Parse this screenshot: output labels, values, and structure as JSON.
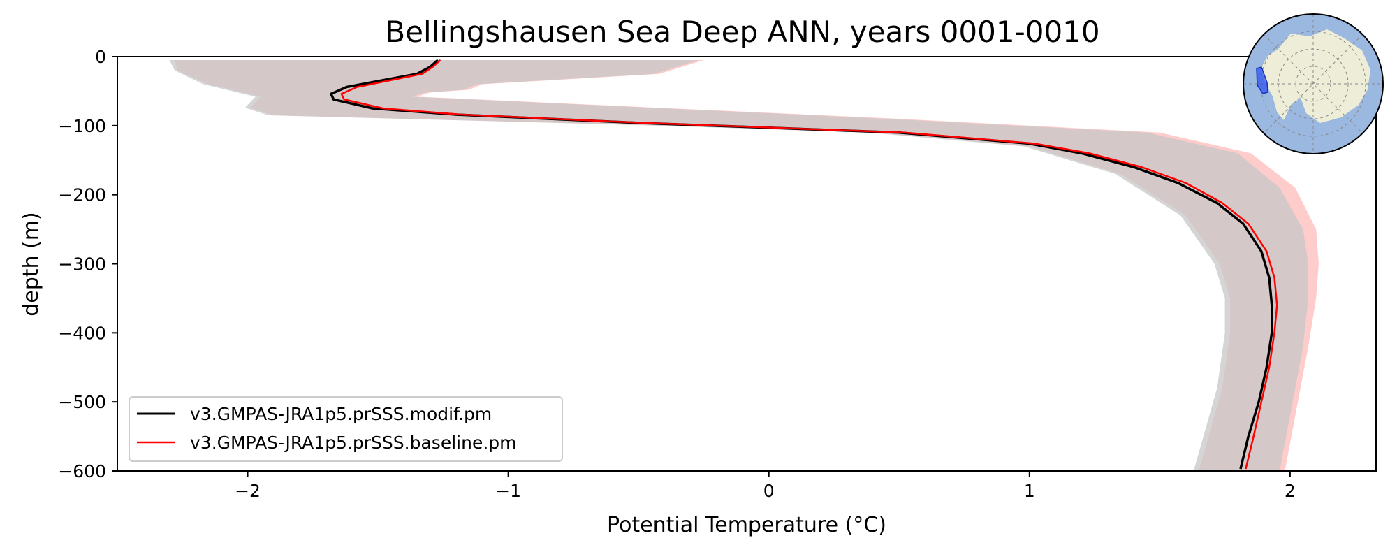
{
  "chart_data": {
    "type": "line",
    "title": "Bellingshausen Sea Deep ANN, years 0001-0010",
    "xlabel": "Potential Temperature (°C)",
    "ylabel": "depth (m)",
    "xlim": [
      -2.5,
      2.33
    ],
    "ylim": [
      -600,
      0
    ],
    "xticks": [
      -2,
      -1,
      0,
      1,
      2
    ],
    "xtick_labels": [
      "−2",
      "−1",
      "0",
      "1",
      "2"
    ],
    "yticks": [
      0,
      -100,
      -200,
      -300,
      -400,
      -500,
      -600
    ],
    "ytick_labels": [
      "0",
      "−100",
      "−200",
      "−300",
      "−400",
      "−500",
      "−600"
    ],
    "grid": false,
    "legend_position": "lower-left",
    "series": [
      {
        "name": "v3.GMPAS-JRA1p5.prSSS.modif.pm",
        "color": "#000000",
        "points": [
          [
            -1.27,
            -5
          ],
          [
            -1.3,
            -15
          ],
          [
            -1.35,
            -25
          ],
          [
            -1.62,
            -44
          ],
          [
            -1.68,
            -54
          ],
          [
            -1.67,
            -62
          ],
          [
            -1.52,
            -75
          ],
          [
            -1.2,
            -84
          ],
          [
            -0.5,
            -96
          ],
          [
            0.0,
            -103
          ],
          [
            0.5,
            -110
          ],
          [
            0.75,
            -118
          ],
          [
            1.0,
            -126
          ],
          [
            1.2,
            -140
          ],
          [
            1.4,
            -160
          ],
          [
            1.57,
            -183
          ],
          [
            1.72,
            -212
          ],
          [
            1.82,
            -242
          ],
          [
            1.89,
            -282
          ],
          [
            1.92,
            -320
          ],
          [
            1.93,
            -360
          ],
          [
            1.93,
            -400
          ],
          [
            1.91,
            -450
          ],
          [
            1.88,
            -500
          ],
          [
            1.84,
            -550
          ],
          [
            1.81,
            -597
          ]
        ]
      },
      {
        "name": "v3.GMPAS-JRA1p5.prSSS.baseline.pm",
        "color": "#ff0000",
        "points": [
          [
            -1.26,
            -5
          ],
          [
            -1.29,
            -15
          ],
          [
            -1.33,
            -25
          ],
          [
            -1.58,
            -44
          ],
          [
            -1.64,
            -54
          ],
          [
            -1.63,
            -62
          ],
          [
            -1.48,
            -75
          ],
          [
            -1.18,
            -84
          ],
          [
            -0.48,
            -96
          ],
          [
            0.02,
            -103
          ],
          [
            0.52,
            -110
          ],
          [
            0.77,
            -118
          ],
          [
            1.02,
            -126
          ],
          [
            1.23,
            -140
          ],
          [
            1.43,
            -160
          ],
          [
            1.6,
            -183
          ],
          [
            1.74,
            -212
          ],
          [
            1.84,
            -242
          ],
          [
            1.91,
            -282
          ],
          [
            1.94,
            -320
          ],
          [
            1.95,
            -360
          ],
          [
            1.94,
            -400
          ],
          [
            1.92,
            -450
          ],
          [
            1.89,
            -500
          ],
          [
            1.86,
            -550
          ],
          [
            1.83,
            -597
          ]
        ]
      }
    ],
    "bands": [
      {
        "series": "v3.GMPAS-JRA1p5.prSSS.baseline.pm",
        "color": "#ffcccc",
        "lower": [
          [
            -2.28,
            -5
          ],
          [
            -2.27,
            -20
          ],
          [
            -2.15,
            -40
          ],
          [
            -1.95,
            -58
          ],
          [
            -1.99,
            -74
          ],
          [
            -1.9,
            -85
          ],
          [
            -0.4,
            -100
          ],
          [
            0.4,
            -110
          ],
          [
            1.0,
            -130
          ],
          [
            1.35,
            -170
          ],
          [
            1.6,
            -230
          ],
          [
            1.73,
            -300
          ],
          [
            1.77,
            -350
          ],
          [
            1.77,
            -400
          ],
          [
            1.74,
            -480
          ],
          [
            1.68,
            -560
          ],
          [
            1.65,
            -600
          ]
        ],
        "upper": [
          [
            -0.25,
            -5
          ],
          [
            -0.42,
            -25
          ],
          [
            -1.1,
            -40
          ],
          [
            -1.15,
            -48
          ],
          [
            -1.3,
            -52
          ],
          [
            -1.35,
            -58
          ],
          [
            0.5,
            -90
          ],
          [
            1.5,
            -110
          ],
          [
            1.85,
            -140
          ],
          [
            2.02,
            -190
          ],
          [
            2.1,
            -250
          ],
          [
            2.11,
            -300
          ],
          [
            2.1,
            -350
          ],
          [
            2.07,
            -420
          ],
          [
            2.03,
            -500
          ],
          [
            2.0,
            -560
          ],
          [
            1.98,
            -600
          ]
        ]
      },
      {
        "series": "v3.GMPAS-JRA1p5.prSSS.modif.pm",
        "color": "#c7c7c7",
        "lower": [
          [
            -2.3,
            -5
          ],
          [
            -2.28,
            -20
          ],
          [
            -2.17,
            -40
          ],
          [
            -1.97,
            -58
          ],
          [
            -2.01,
            -74
          ],
          [
            -1.92,
            -85
          ],
          [
            -0.42,
            -100
          ],
          [
            0.38,
            -110
          ],
          [
            0.98,
            -130
          ],
          [
            1.33,
            -170
          ],
          [
            1.58,
            -230
          ],
          [
            1.71,
            -300
          ],
          [
            1.75,
            -350
          ],
          [
            1.75,
            -400
          ],
          [
            1.72,
            -480
          ],
          [
            1.66,
            -560
          ],
          [
            1.63,
            -600
          ]
        ],
        "upper": [
          [
            -0.27,
            -5
          ],
          [
            -0.44,
            -25
          ],
          [
            -1.12,
            -40
          ],
          [
            -1.17,
            -48
          ],
          [
            -1.32,
            -52
          ],
          [
            -1.37,
            -58
          ],
          [
            0.45,
            -90
          ],
          [
            1.45,
            -110
          ],
          [
            1.8,
            -140
          ],
          [
            1.96,
            -190
          ],
          [
            2.05,
            -250
          ],
          [
            2.07,
            -300
          ],
          [
            2.07,
            -350
          ],
          [
            2.05,
            -420
          ],
          [
            2.01,
            -500
          ],
          [
            1.98,
            -560
          ],
          [
            1.96,
            -600
          ]
        ]
      }
    ]
  },
  "inset_map": {
    "ocean_color": "#9ab8e0",
    "land_color": "#eeeed8",
    "region_color": "#2a4ef0"
  }
}
